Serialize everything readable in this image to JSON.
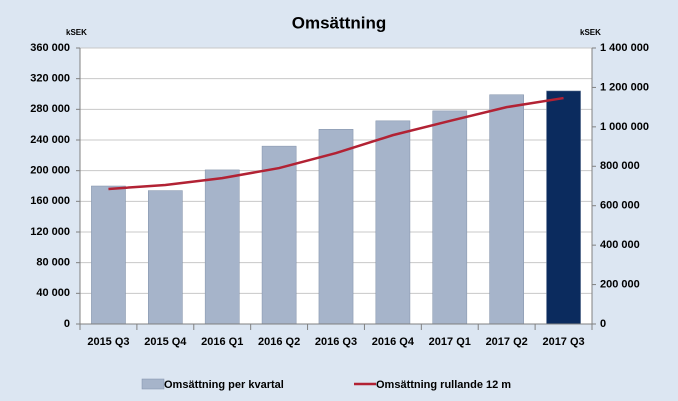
{
  "chart_data": {
    "type": "bar",
    "title": "Omsättning",
    "y_unit": "kSEK",
    "y2_unit": "kSEK",
    "categories": [
      "2015 Q3",
      "2015 Q4",
      "2016 Q1",
      "2016 Q2",
      "2016 Q3",
      "2016 Q4",
      "2017 Q1",
      "2017 Q2",
      "2017 Q3"
    ],
    "series": [
      {
        "name": "Omsättning per kvartal",
        "type": "bar",
        "color": "#a6b4ca",
        "colors": [
          "#a6b4ca",
          "#a6b4ca",
          "#a6b4ca",
          "#a6b4ca",
          "#a6b4ca",
          "#a6b4ca",
          "#a6b4ca",
          "#a6b4ca",
          "#0b2b5e"
        ],
        "values": [
          180000,
          174000,
          201000,
          232000,
          254000,
          265000,
          278000,
          299000,
          304000
        ]
      },
      {
        "name": "Omsättning rullande 12 m",
        "type": "line",
        "axis": "y2",
        "color": "#b22234",
        "values": [
          685000,
          705000,
          740000,
          791000,
          867000,
          958000,
          1030000,
          1100000,
          1146000
        ]
      }
    ],
    "ylim": [
      0,
      360000
    ],
    "yticks": [
      0,
      {
        "value": 40000,
        "label": "40 000"
      },
      {
        "value": 80000,
        "label": "80 000"
      },
      {
        "value": 120000,
        "label": "120 000"
      },
      {
        "value": 160000,
        "label": "160 000"
      },
      {
        "value": 200000,
        "label": "200 000"
      },
      {
        "value": 240000,
        "label": "240 000"
      },
      {
        "value": 280000,
        "label": "280 000"
      },
      {
        "value": 320000,
        "label": "320 000"
      },
      {
        "value": 360000,
        "label": "360 000"
      }
    ],
    "y2lim": [
      0,
      1400000
    ],
    "y2ticks": [
      0,
      {
        "value": 200000,
        "label": "200 000"
      },
      {
        "value": 400000,
        "label": "400 000"
      },
      {
        "value": 600000,
        "label": "600 000"
      },
      {
        "value": 800000,
        "label": "800 000"
      },
      {
        "value": 1000000,
        "label": "1 000 000"
      },
      {
        "value": 1200000,
        "label": "1 200 000"
      },
      {
        "value": 1400000,
        "label": "1 400 000"
      }
    ],
    "grid": true,
    "legend": "bottom"
  }
}
